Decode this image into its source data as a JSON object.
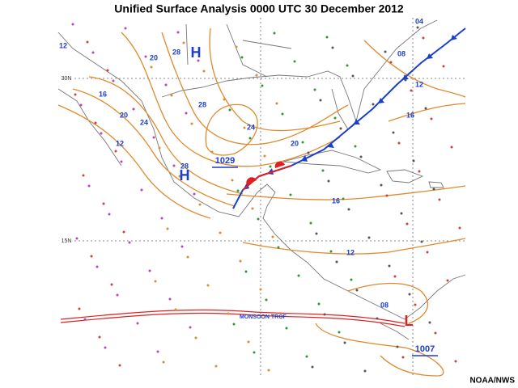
{
  "header": {
    "title": "Unified Surface Analysis 0000 UTC 30 December 2012"
  },
  "footer": {
    "credit": "NOAA/NWS"
  },
  "map": {
    "latitude_labels": [
      "30N",
      "15N"
    ],
    "pressure_centers": [
      {
        "symbol": "H"
      },
      {
        "symbol": "H",
        "pressure": "1029"
      },
      {
        "symbol": "L",
        "pressure": "1007"
      }
    ],
    "isobar_labels": [
      "12",
      "20",
      "28",
      "16",
      "20",
      "24",
      "28",
      "24",
      "20",
      "12",
      "28",
      "08",
      "12",
      "16",
      "16",
      "12",
      "08",
      "04"
    ],
    "trough_label": "MONSOON TROF"
  }
}
